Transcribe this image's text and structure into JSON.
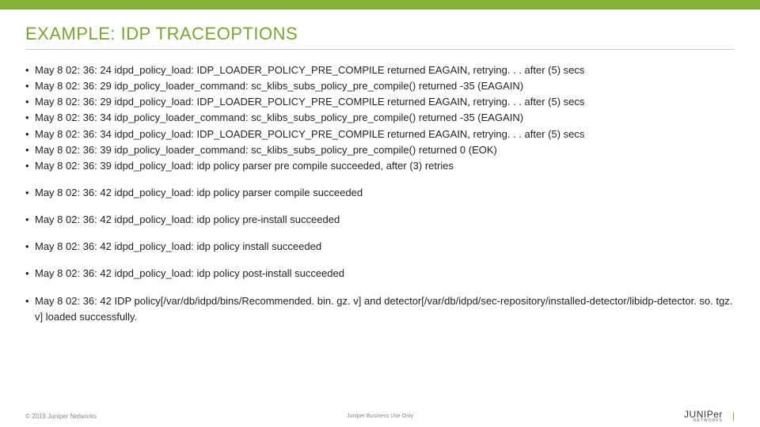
{
  "colors": {
    "accent": "#84b135",
    "title": "#7aa52e",
    "hr": "#cccccc",
    "text": "#222222",
    "muted": "#888888"
  },
  "title": "EXAMPLE: IDP TRACEOPTIONS",
  "group1": [
    "May  8 02: 36: 24 idpd_policy_load: IDP_LOADER_POLICY_PRE_COMPILE returned EAGAIN, retrying. . . after (5) secs",
    "May  8 02: 36: 29 idp_policy_loader_command: sc_klibs_subs_policy_pre_compile() returned -35 (EAGAIN)",
    "May  8 02: 36: 29 idpd_policy_load: IDP_LOADER_POLICY_PRE_COMPILE returned EAGAIN, retrying. . . after (5) secs",
    "May  8 02: 36: 34 idp_policy_loader_command: sc_klibs_subs_policy_pre_compile() returned -35 (EAGAIN)",
    "May  8 02: 36: 34 idpd_policy_load: IDP_LOADER_POLICY_PRE_COMPILE returned EAGAIN, retrying. . . after (5) secs",
    "May  8 02: 36: 39 idp_policy_loader_command: sc_klibs_subs_policy_pre_compile() returned 0 (EOK)",
    "May  8 02: 36: 39 idpd_policy_load: idp policy parser pre compile succeeded, after (3) retries"
  ],
  "lines": [
    "May  8 02: 36: 42 idpd_policy_load: idp policy parser compile succeeded",
    "May  8 02: 36: 42 idpd_policy_load: idp policy pre-install succeeded",
    "May  8 02: 36: 42 idpd_policy_load: idp policy install succeeded",
    "May  8 02: 36: 42 idpd_policy_load: idp policy post-install succeeded",
    "May  8 02: 36: 42 IDP policy[/var/db/idpd/bins/Recommended. bin. gz. v] and detector[/var/db/idpd/sec-repository/installed-detector/libidp-detector. so. tgz. v] loaded successfully."
  ],
  "footer": {
    "copyright": "© 2019 Juniper Networks",
    "center": "Juniper Business Use Only",
    "logo": "JUNIPer",
    "logo_sub": "NETWORKS"
  }
}
